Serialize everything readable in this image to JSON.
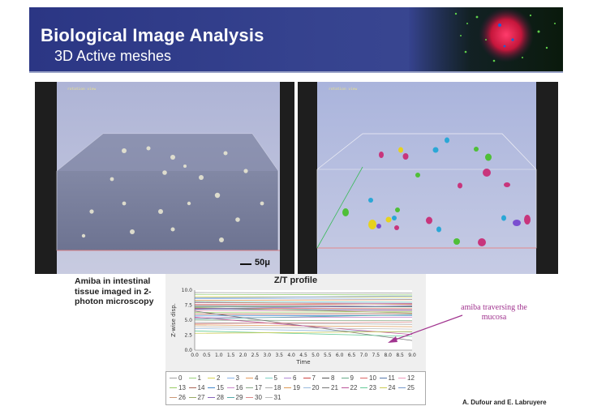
{
  "header": {
    "title": "Biological Image Analysis",
    "subtitle": "3D Active meshes"
  },
  "panels": {
    "left_label": "rotation view",
    "right_label": "rotation view",
    "scale_bar": "50μ"
  },
  "caption": "Amiba in intestinal tissue imaged in 2-photon microscopy",
  "annotation": "amiba traversing the mucosa",
  "credit": "A. Dufour and E. Labruyere",
  "colors": {
    "header_bg": "#2f3c8a",
    "annotation": "#a1348f",
    "blob_palette": [
      "#c8357c",
      "#2aa7d6",
      "#4fbf38",
      "#e6d21e",
      "#7a4fd0",
      "#c8357c"
    ]
  },
  "chart_data": {
    "type": "line",
    "title": "Z/T profile",
    "xlabel": "Time",
    "ylabel": "Z-wise disp.",
    "xlim": [
      0.0,
      9.0
    ],
    "ylim": [
      0.0,
      10.0
    ],
    "x_ticks": [
      "0.0",
      "0.5",
      "1.0",
      "1.5",
      "2.0",
      "2.5",
      "3.0",
      "3.5",
      "4.0",
      "4.5",
      "5.0",
      "5.5",
      "6.0",
      "6.5",
      "7.0",
      "7.5",
      "8.0",
      "8.5",
      "9.0"
    ],
    "y_ticks": [
      "0.0",
      "2.5",
      "5.0",
      "7.5",
      "10.0"
    ],
    "x": [
      0,
      9
    ],
    "series": [
      {
        "name": "0",
        "values": [
          9.6,
          9.5
        ],
        "color": "#a0a0a0"
      },
      {
        "name": "1",
        "values": [
          9.3,
          9.2
        ],
        "color": "#9ad07a"
      },
      {
        "name": "2",
        "values": [
          8.9,
          8.8
        ],
        "color": "#d7d455"
      },
      {
        "name": "3",
        "values": [
          8.6,
          8.5
        ],
        "color": "#8ab4e8"
      },
      {
        "name": "4",
        "values": [
          8.3,
          8.4
        ],
        "color": "#e79d5e"
      },
      {
        "name": "5",
        "values": [
          8.1,
          8.0
        ],
        "color": "#7fd1c6"
      },
      {
        "name": "6",
        "values": [
          7.9,
          7.8
        ],
        "color": "#b28ad6"
      },
      {
        "name": "7",
        "values": [
          7.6,
          7.7
        ],
        "color": "#c44"
      },
      {
        "name": "8",
        "values": [
          7.4,
          7.3
        ],
        "color": "#555"
      },
      {
        "name": "9",
        "values": [
          7.2,
          7.2
        ],
        "color": "#6a8"
      },
      {
        "name": "10",
        "values": [
          7.0,
          6.9
        ],
        "color": "#d66"
      },
      {
        "name": "11",
        "values": [
          6.8,
          6.7
        ],
        "color": "#57a"
      },
      {
        "name": "12",
        "values": [
          6.6,
          6.6
        ],
        "color": "#e9b"
      },
      {
        "name": "13",
        "values": [
          6.3,
          6.4
        ],
        "color": "#9c6"
      },
      {
        "name": "14",
        "values": [
          6.0,
          6.1
        ],
        "color": "#a65"
      },
      {
        "name": "15",
        "values": [
          5.7,
          5.8
        ],
        "color": "#48c"
      },
      {
        "name": "16",
        "values": [
          5.4,
          5.5
        ],
        "color": "#c8c"
      },
      {
        "name": "17",
        "values": [
          5.0,
          4.9
        ],
        "color": "#8a8"
      },
      {
        "name": "18",
        "values": [
          4.6,
          4.3
        ],
        "color": "#aaa"
      },
      {
        "name": "19",
        "values": [
          4.2,
          3.9
        ],
        "color": "#d95"
      },
      {
        "name": "20",
        "values": [
          3.6,
          3.0
        ],
        "color": "#9bd"
      },
      {
        "name": "21",
        "values": [
          6.5,
          1.6
        ],
        "color": "#777"
      },
      {
        "name": "22",
        "values": [
          5.5,
          2.6
        ],
        "color": "#b59"
      },
      {
        "name": "23",
        "values": [
          3.2,
          2.3
        ],
        "color": "#6c9"
      },
      {
        "name": "24",
        "values": [
          2.8,
          3.1
        ],
        "color": "#cc5"
      },
      {
        "name": "25",
        "values": [
          8.7,
          9.0
        ],
        "color": "#79c"
      },
      {
        "name": "26",
        "values": [
          8.0,
          7.6
        ],
        "color": "#c97"
      },
      {
        "name": "27",
        "values": [
          7.1,
          6.2
        ],
        "color": "#9a6"
      },
      {
        "name": "28",
        "values": [
          6.9,
          7.4
        ],
        "color": "#86b"
      },
      {
        "name": "29",
        "values": [
          5.2,
          5.9
        ],
        "color": "#5aa"
      },
      {
        "name": "30",
        "values": [
          4.4,
          4.7
        ],
        "color": "#d88"
      },
      {
        "name": "31",
        "values": [
          3.9,
          3.5
        ],
        "color": "#bbb"
      }
    ],
    "grid": false,
    "legend": "bottom"
  }
}
